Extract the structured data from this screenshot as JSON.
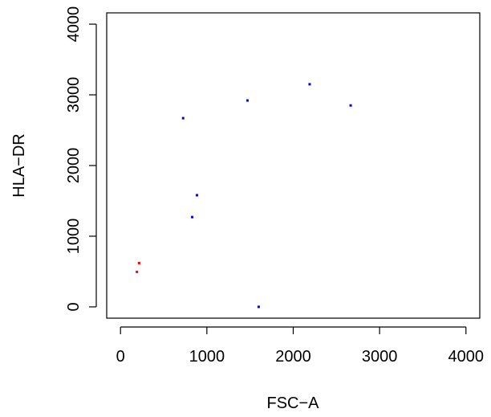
{
  "chart_data": {
    "type": "scatter",
    "title": "",
    "xlabel": "FSC−A",
    "ylabel": "HLA−DR",
    "xlim": [
      -160,
      4160
    ],
    "ylim": [
      -160,
      4160
    ],
    "x_ticks": [
      0,
      1000,
      2000,
      3000,
      4000
    ],
    "y_ticks": [
      0,
      1000,
      2000,
      3000,
      4000
    ],
    "x_tick_labels": [
      "0",
      "1000",
      "2000",
      "3000",
      "4000"
    ],
    "y_tick_labels": [
      "0",
      "1000",
      "2000",
      "3000",
      "4000"
    ],
    "grid": false,
    "series": [
      {
        "color": "#ff0000",
        "points": [
          {
            "x": 215,
            "y": 620
          },
          {
            "x": 190,
            "y": 495
          }
        ]
      },
      {
        "color": "#0000ff",
        "points": [
          {
            "x": 725,
            "y": 2670
          },
          {
            "x": 1470,
            "y": 2920
          },
          {
            "x": 2190,
            "y": 3150
          },
          {
            "x": 2665,
            "y": 2850
          },
          {
            "x": 885,
            "y": 1580
          },
          {
            "x": 830,
            "y": 1270
          },
          {
            "x": 1600,
            "y": 0
          }
        ]
      }
    ]
  }
}
